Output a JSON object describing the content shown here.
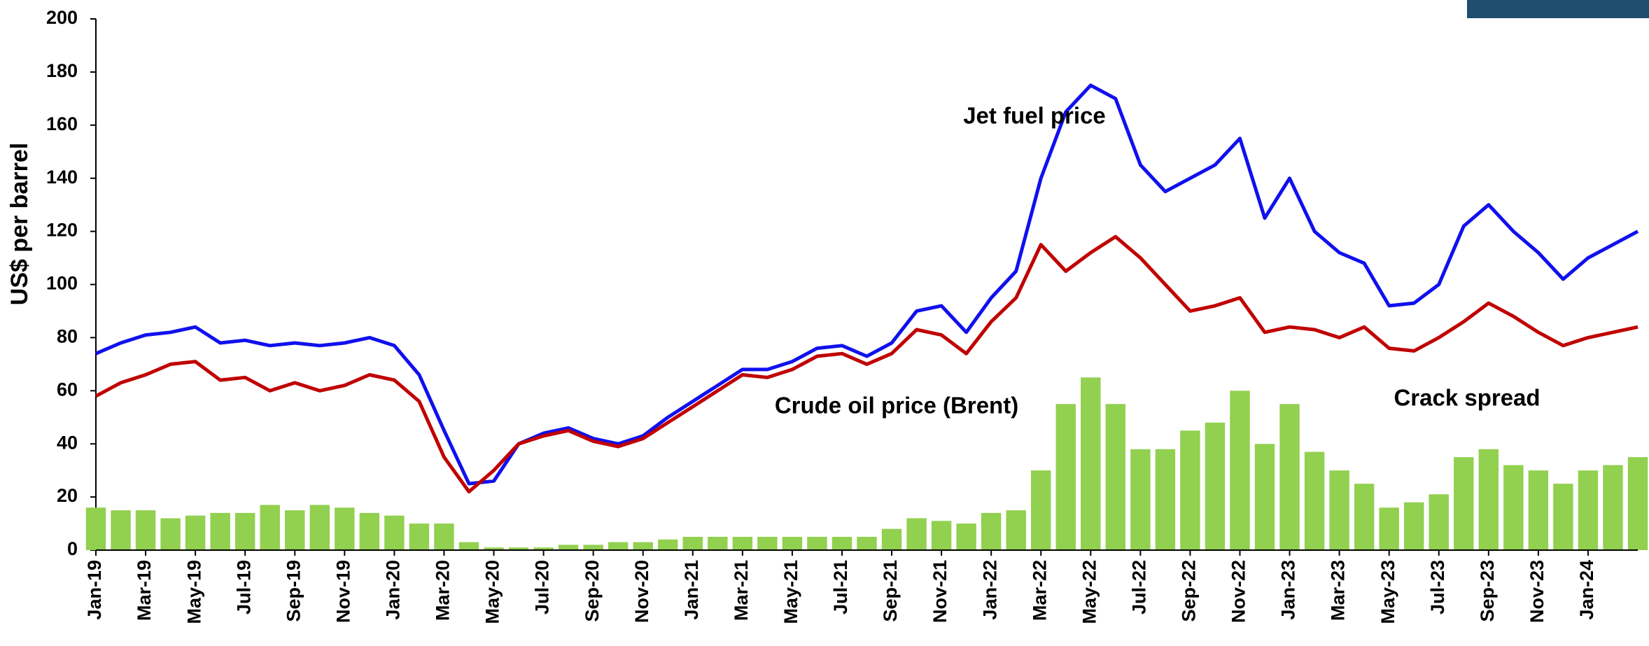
{
  "chart_data": {
    "type": "line",
    "y_label": "US$ per barrel",
    "x": [
      "2019-01",
      "2019-02",
      "2019-03",
      "2019-04",
      "2019-05",
      "2019-06",
      "2019-07",
      "2019-08",
      "2019-09",
      "2019-10",
      "2019-11",
      "2019-12",
      "2020-01",
      "2020-02",
      "2020-03",
      "2020-04",
      "2020-05",
      "2020-06",
      "2020-07",
      "2020-08",
      "2020-09",
      "2020-10",
      "2020-11",
      "2020-12",
      "2021-01",
      "2021-02",
      "2021-03",
      "2021-04",
      "2021-05",
      "2021-06",
      "2021-07",
      "2021-08",
      "2021-09",
      "2021-10",
      "2021-11",
      "2021-12",
      "2022-01",
      "2022-02",
      "2022-03",
      "2022-04",
      "2022-05",
      "2022-06",
      "2022-07",
      "2022-08",
      "2022-09",
      "2022-10",
      "2022-11",
      "2022-12",
      "2023-01",
      "2023-02",
      "2023-03",
      "2023-04",
      "2023-05",
      "2023-06",
      "2023-07",
      "2023-08",
      "2023-09",
      "2023-10",
      "2023-11",
      "2023-12",
      "2024-01",
      "2024-02",
      "2024-03"
    ],
    "series": [
      {
        "name": "Crack spread",
        "type": "bar",
        "color": "#92d050",
        "values": [
          16,
          15,
          15,
          12,
          13,
          14,
          14,
          17,
          15,
          17,
          16,
          14,
          13,
          10,
          10,
          3,
          1,
          1,
          1,
          2,
          2,
          3,
          3,
          4,
          5,
          5,
          5,
          5,
          5,
          5,
          5,
          5,
          8,
          12,
          11,
          10,
          14,
          15,
          30,
          55,
          65,
          55,
          38,
          38,
          45,
          48,
          60,
          40,
          55,
          37,
          30,
          25,
          16,
          18,
          21,
          35,
          38,
          32,
          30,
          25,
          30,
          32,
          35
        ]
      },
      {
        "name": "Jet fuel price",
        "type": "line",
        "color": "#1010ee",
        "values": [
          74,
          78,
          81,
          82,
          84,
          78,
          79,
          77,
          78,
          77,
          78,
          80,
          77,
          66,
          45,
          25,
          26,
          40,
          44,
          46,
          42,
          40,
          43,
          50,
          56,
          62,
          68,
          68,
          71,
          76,
          77,
          73,
          78,
          90,
          92,
          82,
          95,
          105,
          140,
          165,
          175,
          170,
          145,
          135,
          140,
          145,
          155,
          125,
          140,
          120,
          112,
          108,
          92,
          93,
          100,
          122,
          130,
          120,
          112,
          102,
          110,
          115,
          120
        ]
      },
      {
        "name": "Crude oil price (Brent)",
        "type": "line",
        "color": "#c00000",
        "values": [
          58,
          63,
          66,
          70,
          71,
          64,
          65,
          60,
          63,
          60,
          62,
          66,
          64,
          56,
          35,
          22,
          30,
          40,
          43,
          45,
          41,
          39,
          42,
          48,
          54,
          60,
          66,
          65,
          68,
          73,
          74,
          70,
          74,
          83,
          81,
          74,
          86,
          95,
          115,
          105,
          112,
          118,
          110,
          100,
          90,
          92,
          95,
          82,
          84,
          83,
          80,
          84,
          76,
          75,
          80,
          86,
          93,
          88,
          82,
          77,
          80,
          82,
          84
        ]
      }
    ],
    "xlim": [
      "2019-01",
      "2024-03"
    ],
    "xticks": [
      {
        "value": "2019-01",
        "label": "Jan-19"
      },
      {
        "value": "2019-03",
        "label": "Mar-19"
      },
      {
        "value": "2019-05",
        "label": "May-19"
      },
      {
        "value": "2019-07",
        "label": "Jul-19"
      },
      {
        "value": "2019-09",
        "label": "Sep-19"
      },
      {
        "value": "2019-11",
        "label": "Nov-19"
      },
      {
        "value": "2020-01",
        "label": "Jan-20"
      },
      {
        "value": "2020-03",
        "label": "Mar-20"
      },
      {
        "value": "2020-05",
        "label": "May-20"
      },
      {
        "value": "2020-07",
        "label": "Jul-20"
      },
      {
        "value": "2020-09",
        "label": "Sep-20"
      },
      {
        "value": "2020-11",
        "label": "Nov-20"
      },
      {
        "value": "2021-01",
        "label": "Jan-21"
      },
      {
        "value": "2021-03",
        "label": "Mar-21"
      },
      {
        "value": "2021-05",
        "label": "May-21"
      },
      {
        "value": "2021-07",
        "label": "Jul-21"
      },
      {
        "value": "2021-09",
        "label": "Sep-21"
      },
      {
        "value": "2021-11",
        "label": "Nov-21"
      },
      {
        "value": "2022-01",
        "label": "Jan-22"
      },
      {
        "value": "2022-03",
        "label": "Mar-22"
      },
      {
        "value": "2022-05",
        "label": "May-22"
      },
      {
        "value": "2022-07",
        "label": "Jul-22"
      },
      {
        "value": "2022-09",
        "label": "Sep-22"
      },
      {
        "value": "2022-11",
        "label": "Nov-22"
      },
      {
        "value": "2023-01",
        "label": "Jan-23"
      },
      {
        "value": "2023-03",
        "label": "Mar-23"
      },
      {
        "value": "2023-05",
        "label": "May-23"
      },
      {
        "value": "2023-07",
        "label": "Jul-23"
      },
      {
        "value": "2023-09",
        "label": "Sep-23"
      },
      {
        "value": "2023-11",
        "label": "Nov-23"
      },
      {
        "value": "2024-01",
        "label": "Jan-24"
      }
    ],
    "ylim": [
      0,
      200
    ],
    "yticks": [
      0,
      20,
      40,
      60,
      80,
      100,
      120,
      140,
      160,
      180,
      200
    ],
    "grid": false
  }
}
